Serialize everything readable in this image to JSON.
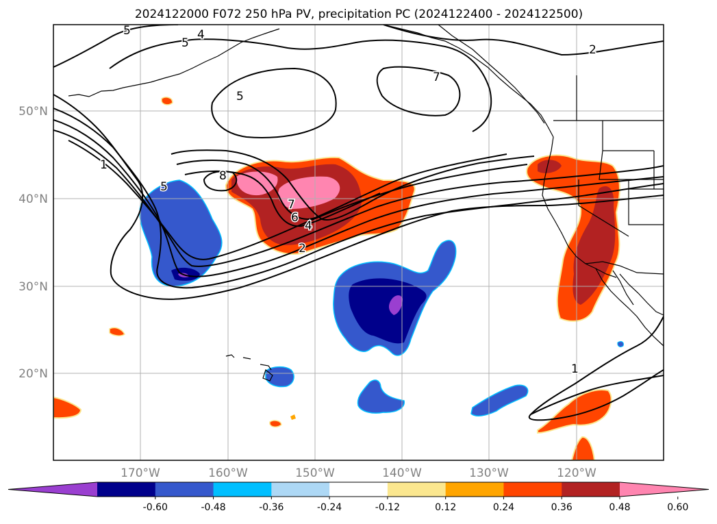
{
  "title": "2024122000 F072 250 hPa PV, precipitation PC (2024122400 - 2024122500)",
  "lat_labels": [
    "50°N",
    "40°N",
    "30°N",
    "20°N"
  ],
  "lon_labels": [
    "170°W",
    "160°W",
    "150°W",
    "140°W",
    "130°W",
    "120°W"
  ],
  "colorbar": {
    "colors": [
      "#9a3fd0",
      "#00008b",
      "#3558cc",
      "#00bfff",
      "#add8f5",
      "#ffffff",
      "#fbe78f",
      "#ffa500",
      "#ff4500",
      "#b22222",
      "#ff85b0"
    ],
    "tick_labels": [
      "-0.60",
      "-0.48",
      "-0.36",
      "-0.24",
      "-0.12",
      "0.12",
      "0.24",
      "0.36",
      "0.48",
      "0.60"
    ]
  },
  "contour_labels": [
    "5",
    "4",
    "5",
    "5",
    "7",
    "2",
    "1",
    "5",
    "8",
    "7",
    "6",
    "4",
    "2",
    "1"
  ]
}
